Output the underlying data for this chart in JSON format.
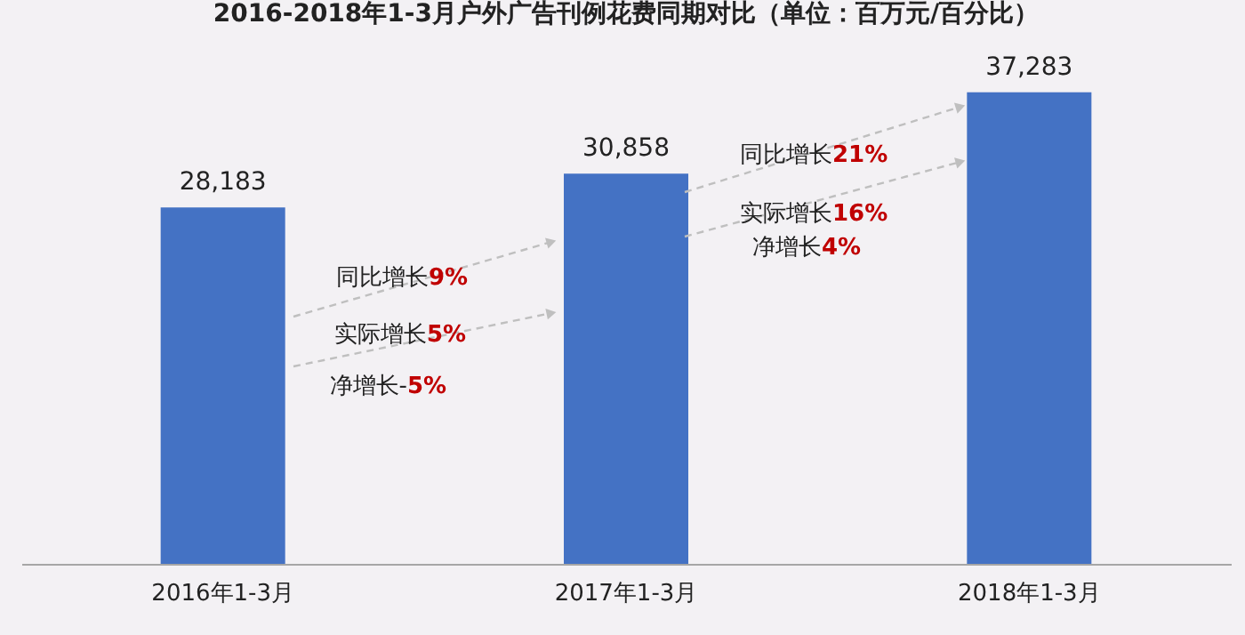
{
  "chart_data": {
    "type": "bar",
    "title": "2016-2018年1-3月户外广告刊例花费同期对比（单位：百万元/百分比）",
    "categories": [
      "2016年1-3月",
      "2017年1-3月",
      "2018年1-3月"
    ],
    "values": [
      28183,
      30858,
      37283
    ],
    "color": "#4472c4",
    "value_labels": [
      "28,183",
      "30,858",
      "37,283"
    ],
    "annotations": [
      "同比增长9%",
      "实际增长5%",
      "净增长-5%",
      "同比增长21%",
      "实际增长16%",
      "净增长4%"
    ]
  }
}
